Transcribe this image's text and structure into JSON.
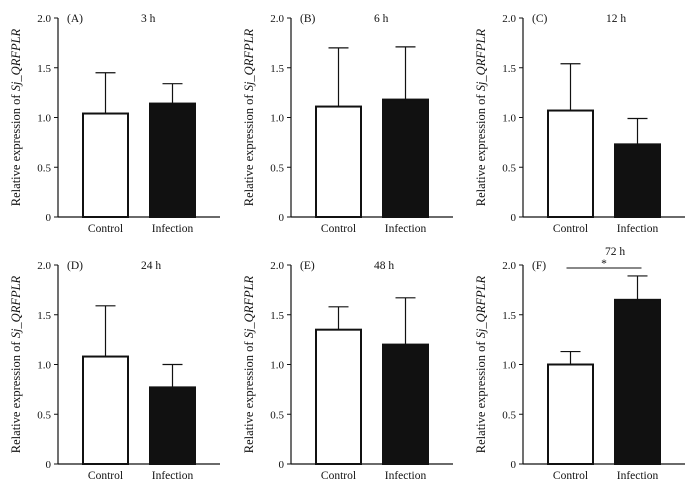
{
  "chart_data": [
    {
      "type": "bar",
      "panel": "(A)",
      "time": "3 h",
      "categories": [
        "Control",
        "Infection"
      ],
      "values": [
        1.04,
        1.14
      ],
      "errors": [
        0.41,
        0.2
      ],
      "ylim": [
        0,
        2.0
      ],
      "yticks": [
        "0",
        "0.5",
        "1.0",
        "1.5",
        "2.0"
      ],
      "ylabel_prefix": "Relative expression of ",
      "ylabel_gene": "Sj_QRFPLR",
      "colors": [
        "#ffffff",
        "#111111"
      ],
      "significance": ""
    },
    {
      "type": "bar",
      "panel": "(B)",
      "time": "6 h",
      "categories": [
        "Control",
        "Infection"
      ],
      "values": [
        1.11,
        1.18
      ],
      "errors": [
        0.59,
        0.53
      ],
      "ylim": [
        0,
        2.0
      ],
      "yticks": [
        "0",
        "0.5",
        "1.0",
        "1.5",
        "2.0"
      ],
      "ylabel_prefix": "Relative expression of ",
      "ylabel_gene": "Sj_QRFPLR",
      "colors": [
        "#ffffff",
        "#111111"
      ],
      "significance": ""
    },
    {
      "type": "bar",
      "panel": "(C)",
      "time": "12 h",
      "categories": [
        "Control",
        "Infection"
      ],
      "values": [
        1.07,
        0.73
      ],
      "errors": [
        0.47,
        0.26
      ],
      "ylim": [
        0,
        2.0
      ],
      "yticks": [
        "0",
        "0.5",
        "1.0",
        "1.5",
        "2.0"
      ],
      "ylabel_prefix": "Relative expression of ",
      "ylabel_gene": "Sj_QRFPLR",
      "colors": [
        "#ffffff",
        "#111111"
      ],
      "significance": ""
    },
    {
      "type": "bar",
      "panel": "(D)",
      "time": "24 h",
      "categories": [
        "Control",
        "Infection"
      ],
      "values": [
        1.08,
        0.77
      ],
      "errors": [
        0.51,
        0.23
      ],
      "ylim": [
        0,
        2.0
      ],
      "yticks": [
        "0",
        "0.5",
        "1.0",
        "1.5",
        "2.0"
      ],
      "ylabel_prefix": "Relative expression of ",
      "ylabel_gene": "Sj_QRFPLR",
      "colors": [
        "#ffffff",
        "#111111"
      ],
      "significance": ""
    },
    {
      "type": "bar",
      "panel": "(E)",
      "time": "48 h",
      "categories": [
        "Control",
        "Infection"
      ],
      "values": [
        1.35,
        1.2
      ],
      "errors": [
        0.23,
        0.47
      ],
      "ylim": [
        0,
        2.0
      ],
      "yticks": [
        "0",
        "0.5",
        "1.0",
        "1.5",
        "2.0"
      ],
      "ylabel_prefix": "Relative expression of ",
      "ylabel_gene": "Sj_QRFPLR",
      "colors": [
        "#ffffff",
        "#111111"
      ],
      "significance": ""
    },
    {
      "type": "bar",
      "panel": "(F)",
      "time": "72 h",
      "categories": [
        "Control",
        "Infection"
      ],
      "values": [
        1.0,
        1.65
      ],
      "errors": [
        0.13,
        0.24
      ],
      "ylim": [
        0,
        2.0
      ],
      "yticks": [
        "0",
        "0.5",
        "1.0",
        "1.5",
        "2.0"
      ],
      "ylabel_prefix": "Relative expression of ",
      "ylabel_gene": "Sj_QRFPLR",
      "colors": [
        "#ffffff",
        "#111111"
      ],
      "significance": "*"
    }
  ]
}
